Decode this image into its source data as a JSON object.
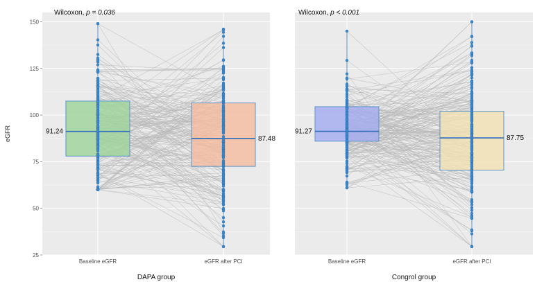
{
  "chart_data": {
    "type": "box-paired",
    "ylabel": "eGFR",
    "ylim": [
      25,
      155
    ],
    "yticks": [
      25,
      50,
      75,
      100,
      125,
      150
    ],
    "panels": [
      {
        "group_label": "DAPA group",
        "stat": {
          "method": "Wilcoxon, ",
          "p_label": "p = 0.036"
        },
        "boxes": [
          {
            "category": "Baseline eGFR",
            "median": 91.24,
            "median_label": "91.24",
            "q1": 78,
            "q3": 107.5,
            "min": 60,
            "max": 149,
            "fill": "#9fd39a"
          },
          {
            "category": "eGFR after PCI",
            "median": 87.48,
            "median_label": "87.48",
            "q1": 72.5,
            "q3": 106.5,
            "min": 29.5,
            "max": 146,
            "fill": "#f4bca0"
          }
        ]
      },
      {
        "group_label": "Congrol group",
        "stat": {
          "method": "Wilcoxon, ",
          "p_label": "p < 0.001"
        },
        "boxes": [
          {
            "category": "Baseline eGFR",
            "median": 91.27,
            "median_label": "91.27",
            "q1": 86,
            "q3": 104.5,
            "min": 61,
            "max": 145,
            "fill": "#a3acef"
          },
          {
            "category": "eGFR after PCI",
            "median": 87.75,
            "median_label": "87.75",
            "q1": 70.5,
            "q3": 102,
            "min": 29.5,
            "max": 150,
            "fill": "#f2e0b2"
          }
        ]
      }
    ],
    "n_points_per_group": 210
  },
  "colors": {
    "panel_bg": "#ebebeb",
    "grid": "#ffffff",
    "points": "#3a86c8",
    "pair_lines": "#b9b9b9",
    "box_edge": "#5a93c8",
    "median_line": "#2f6fbb"
  }
}
